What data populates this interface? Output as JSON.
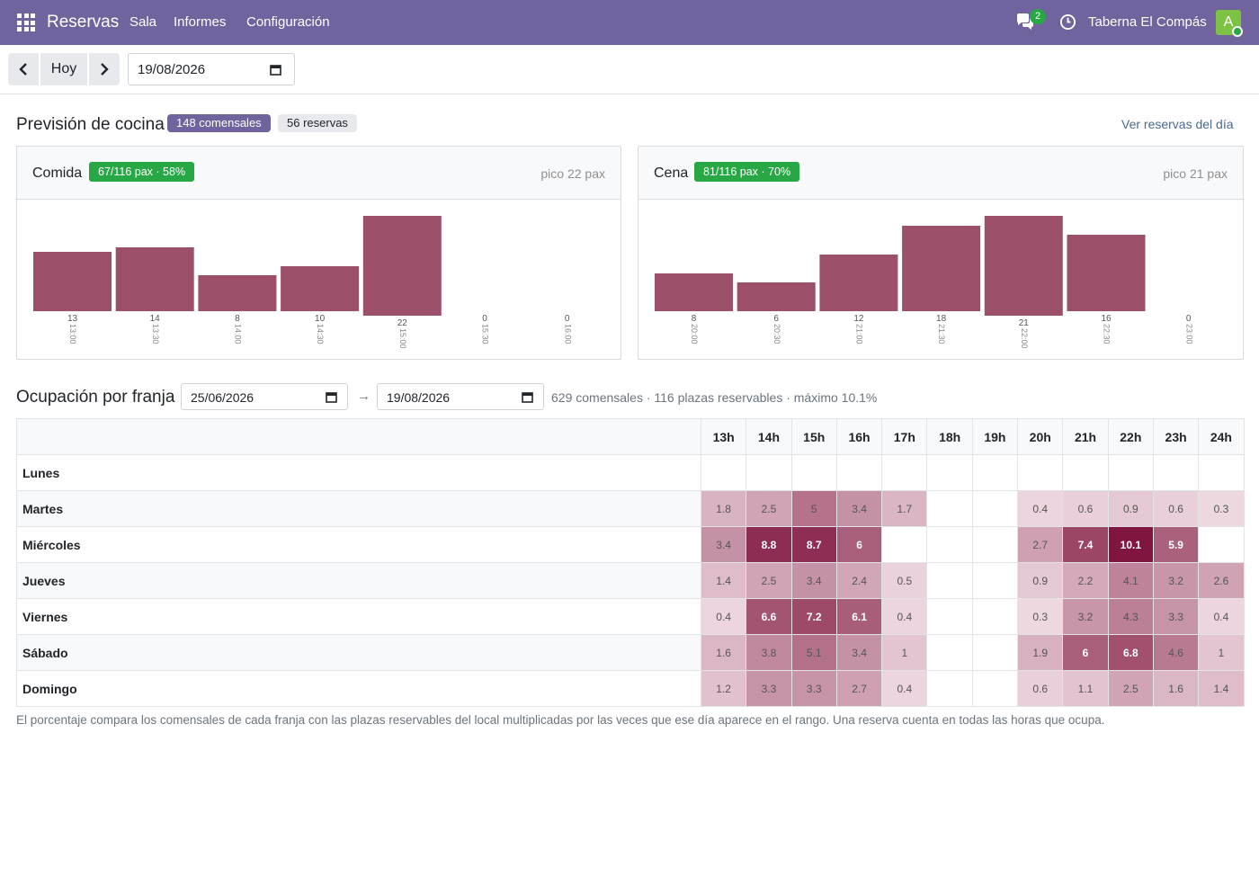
{
  "navbar": {
    "app_title": "Reservas",
    "menu": [
      "Sala",
      "Informes",
      "Configuración"
    ],
    "chat_count": "2",
    "company": "Taberna El Compás",
    "avatar_letter": "A",
    "color": "#71639e"
  },
  "controls": {
    "today_label": "Hoy",
    "date": "19/08/2026"
  },
  "forecast": {
    "title": "Previsión de cocina",
    "guests_badge": "148 comensales",
    "bookings_badge": "56 reservas",
    "link": "Ver reservas del día",
    "lunch": {
      "title": "Comida",
      "pill": "67/116 pax · 58%",
      "peak": "pico 22 pax"
    },
    "dinner": {
      "title": "Cena",
      "pill": "81/116 pax · 70%",
      "peak": "pico 21 pax"
    }
  },
  "chart_data": [
    {
      "type": "bar",
      "categories": [
        "13:00",
        "13:30",
        "14:00",
        "14:30",
        "15:00",
        "15:30",
        "16:00"
      ],
      "values": [
        13,
        14,
        8,
        10,
        22,
        0,
        0
      ],
      "ylim": [
        0,
        22
      ],
      "color": "#9b4f68"
    },
    {
      "type": "bar",
      "categories": [
        "20:00",
        "20:30",
        "21:00",
        "21:30",
        "22:00",
        "22:30",
        "23:00"
      ],
      "values": [
        8,
        6,
        12,
        18,
        21,
        16,
        0
      ],
      "ylim": [
        0,
        21
      ],
      "color": "#9b4f68"
    }
  ],
  "occupancy": {
    "title": "Occupación",
    "date_from": "25/06/2026",
    "arrow": "→",
    "date_to": "19/08/2026",
    "summary": "629 comensales · 116 plazas reservables · máximo 10.1%",
    "hours": [
      "13h",
      "14h",
      "15h",
      "16h",
      "17h",
      "18h",
      "19h",
      "20h",
      "21h",
      "22h",
      "23h",
      "24h"
    ],
    "rows": [
      {
        "day": "Lunes",
        "values": [
          null,
          null,
          null,
          null,
          null,
          null,
          null,
          null,
          null,
          null,
          null,
          null
        ]
      },
      {
        "day": "Martes",
        "values": [
          1.8,
          2.5,
          5,
          3.4,
          1.7,
          null,
          null,
          0.4,
          0.6,
          0.9,
          0.6,
          0.3
        ]
      },
      {
        "day": "Miércoles",
        "values": [
          3.4,
          8.8,
          8.7,
          6,
          null,
          null,
          null,
          2.7,
          7.4,
          10.1,
          5.9,
          null
        ]
      },
      {
        "day": "Jueves",
        "values": [
          1.4,
          2.5,
          3.4,
          2.4,
          0.5,
          null,
          null,
          0.9,
          2.2,
          4.1,
          3.2,
          2.6
        ]
      },
      {
        "day": "Viernes",
        "values": [
          0.4,
          6.6,
          7.2,
          6.1,
          0.4,
          null,
          null,
          0.3,
          3.2,
          4.3,
          3.3,
          0.4
        ]
      },
      {
        "day": "Sábado",
        "values": [
          1.6,
          3.8,
          5.1,
          3.4,
          1,
          null,
          null,
          1.9,
          6,
          6.8,
          4.6,
          1
        ]
      },
      {
        "day": "Domingo",
        "values": [
          1.2,
          3.3,
          3.3,
          2.7,
          0.4,
          null,
          null,
          0.6,
          1.1,
          2.5,
          1.6,
          1.4
        ]
      }
    ],
    "max": 10.1,
    "note": "El porcentaje compara los comensales de cada franja con las plazas reservables del local multiplicadas por las veces que ese día aparece en el rango. Una reserva cuenta en todas las horas que ocupa."
  }
}
